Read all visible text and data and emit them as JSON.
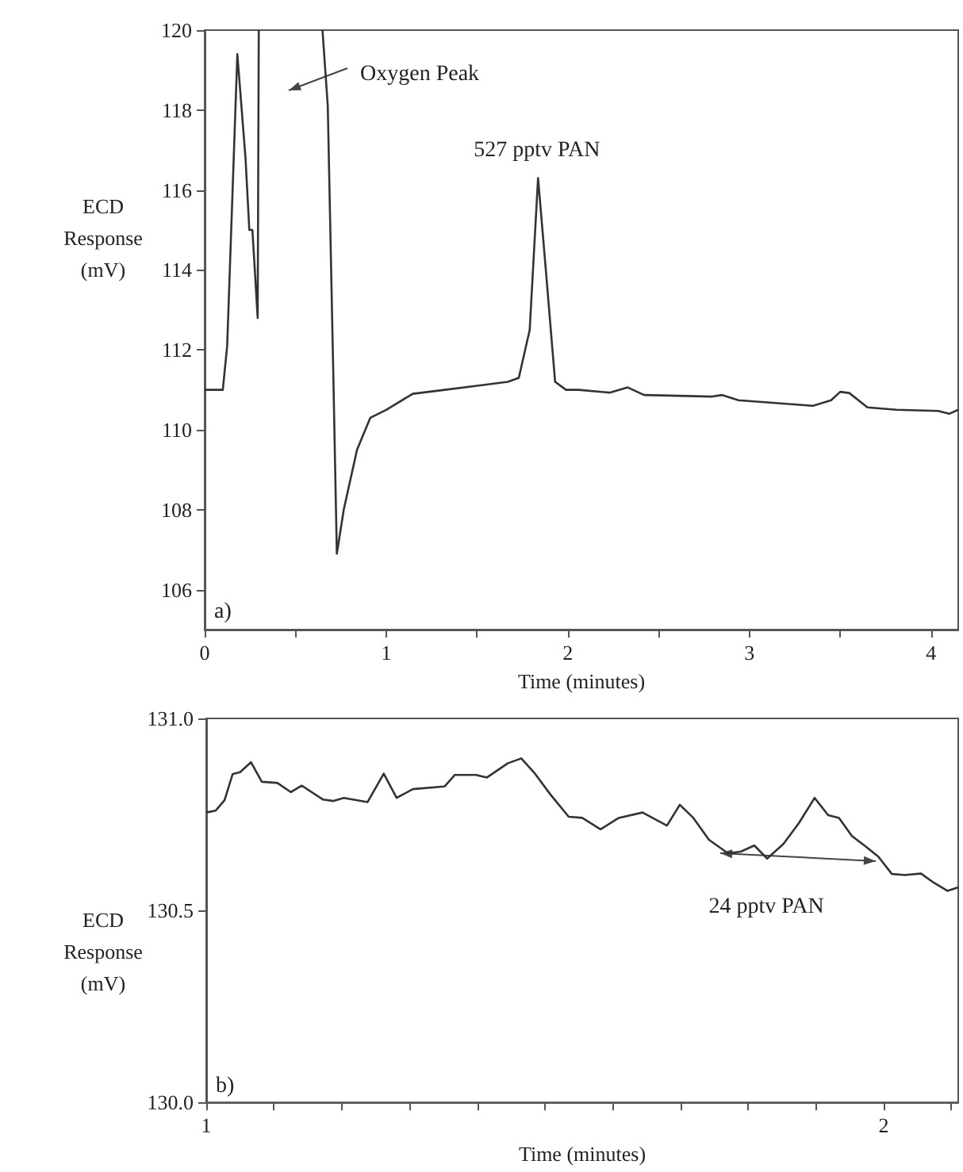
{
  "chart_data": [
    {
      "type": "line",
      "xlabel": "Time (minutes)",
      "ylabel": "ECD Response (mV)",
      "xlim": [
        0,
        4.15
      ],
      "ylim": [
        105,
        120
      ],
      "xticks": [
        0,
        {
          "value": 0.5,
          "label": null
        },
        1,
        {
          "value": 1.5,
          "label": null
        },
        2,
        {
          "value": 2.5,
          "label": null
        },
        3,
        {
          "value": 3.5,
          "label": null
        },
        4
      ],
      "yticks": [
        106,
        108,
        110,
        112,
        114,
        116,
        118,
        120
      ],
      "marker": "none",
      "grid": false,
      "annotations": [
        "Oxygen Peak",
        {
          "text": "527 pptv PAN",
          "x": 1.83,
          "y": 116.3
        },
        "a)"
      ],
      "series": [
        {
          "color": "#333333",
          "x": [
            0,
            0.1,
            0.124,
            0.18,
            0.225,
            0.246,
            0.263,
            0.292,
            0.298,
            0.45,
            0.649,
            0.678,
            0.708,
            0.728,
            0.766,
            0.839,
            0.912,
            1.0,
            1.146,
            1.322,
            1.5,
            1.67,
            1.73,
            1.79,
            1.836,
            1.877,
            1.93,
            1.99,
            2.06,
            2.23,
            2.33,
            2.42,
            2.79,
            2.85,
            2.94,
            3.35,
            3.45,
            3.5,
            3.55,
            3.65,
            3.81,
            4.04,
            4.1,
            4.15
          ],
          "values": [
            111.0,
            111.0,
            112.1,
            119.4,
            116.8,
            115.0,
            115.0,
            112.8,
            120,
            null,
            120,
            118.1,
            111.5,
            106.9,
            108.0,
            109.5,
            110.3,
            110.5,
            110.9,
            111.0,
            111.1,
            111.2,
            111.3,
            112.5,
            116.3,
            114.1,
            111.2,
            111.0,
            111.0,
            110.93,
            111.06,
            110.87,
            110.83,
            110.87,
            110.74,
            110.6,
            110.74,
            110.95,
            110.92,
            110.56,
            110.5,
            110.47,
            110.4,
            110.5
          ]
        }
      ]
    },
    {
      "type": "line",
      "xlabel": "Time (minutes)",
      "ylabel": "ECD Response (mV)",
      "xlim": [
        1,
        2.11
      ],
      "ylim": [
        130,
        131
      ],
      "xticks": [
        1,
        {
          "value": 1.1,
          "label": null
        },
        {
          "value": 1.2,
          "label": null
        },
        {
          "value": 1.3,
          "label": null
        },
        {
          "value": 1.4,
          "label": null
        },
        {
          "value": 1.5,
          "label": null
        },
        {
          "value": 1.6,
          "label": null
        },
        {
          "value": 1.7,
          "label": null
        },
        {
          "value": 1.8,
          "label": null
        },
        {
          "value": 1.9,
          "label": null
        },
        2,
        {
          "value": 2.1,
          "label": null
        }
      ],
      "yticks": [
        {
          "value": 130,
          "label": "130.0"
        },
        130.5,
        {
          "value": 131,
          "label": "131.0"
        }
      ],
      "marker": "none",
      "grid": false,
      "annotations": [
        "24 pptv PAN",
        "b)"
      ],
      "series": [
        {
          "color": "#333333",
          "x": [
            1.0,
            1.014,
            1.027,
            1.039,
            1.05,
            1.066,
            1.082,
            1.105,
            1.125,
            1.141,
            1.172,
            1.188,
            1.203,
            1.238,
            1.262,
            1.281,
            1.305,
            1.352,
            1.367,
            1.398,
            1.414,
            1.445,
            1.465,
            1.484,
            1.508,
            1.535,
            1.555,
            1.582,
            1.609,
            1.644,
            1.68,
            1.699,
            1.719,
            1.742,
            1.77,
            1.789,
            1.809,
            1.828,
            1.852,
            1.875,
            1.898,
            1.918,
            1.934,
            1.953,
            1.973,
            1.992,
            2.012,
            2.031,
            2.055,
            2.074,
            2.094,
            2.11
          ],
          "values": [
            130.755,
            130.76,
            130.787,
            130.855,
            130.86,
            130.886,
            130.835,
            130.832,
            130.808,
            130.825,
            130.789,
            130.785,
            130.793,
            130.782,
            130.856,
            130.793,
            130.816,
            130.823,
            130.853,
            130.853,
            130.846,
            130.883,
            130.896,
            130.859,
            130.802,
            130.744,
            130.741,
            130.711,
            130.741,
            130.755,
            130.721,
            130.775,
            130.741,
            130.684,
            130.649,
            130.653,
            130.669,
            130.635,
            130.673,
            130.728,
            130.793,
            130.748,
            130.741,
            130.694,
            130.667,
            130.64,
            130.595,
            130.592,
            130.596,
            130.572,
            130.551,
            130.56
          ]
        }
      ]
    }
  ]
}
